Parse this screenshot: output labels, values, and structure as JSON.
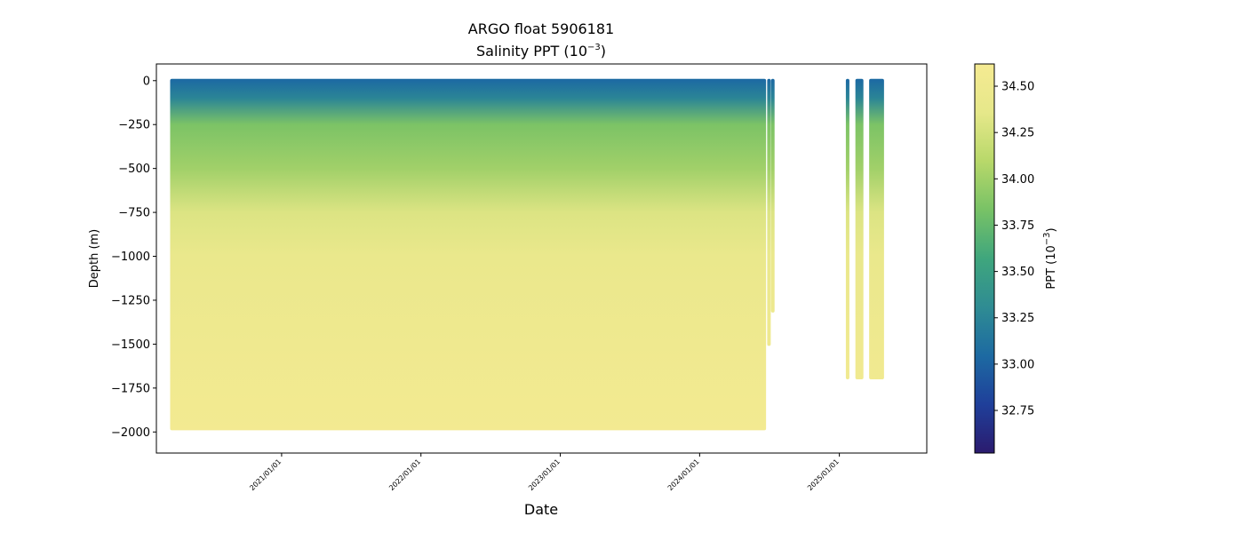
{
  "chart_data": {
    "type": "scatter",
    "title": "ARGO float 5906181",
    "subtitle_prefix": "Salinity PPT (10",
    "subtitle_exp": "−3",
    "subtitle_suffix": ")",
    "xlabel": "Date",
    "ylabel": "Depth (m)",
    "colorbar_label_prefix": "PPT (10",
    "colorbar_label_exp": "−3",
    "colorbar_label_suffix": ")",
    "colormap": "YlGnBu_r",
    "colormap_stops": [
      "#2b1b6e",
      "#1f3f9a",
      "#1d6aa2",
      "#2f8c93",
      "#3fa67d",
      "#78c266",
      "#b8d86a",
      "#e6e88a",
      "#f5ea92"
    ],
    "clim": [
      32.52,
      34.62
    ],
    "ylim": [
      -2120,
      95
    ],
    "xlim": [
      "2020-02-08",
      "2025-08-18"
    ],
    "grid": false,
    "y_ticks": [
      {
        "value": 0,
        "label": "0"
      },
      {
        "value": -250,
        "label": "−250"
      },
      {
        "value": -500,
        "label": "−500"
      },
      {
        "value": -750,
        "label": "−750"
      },
      {
        "value": -1000,
        "label": "−1000"
      },
      {
        "value": -1250,
        "label": "−1250"
      },
      {
        "value": -1500,
        "label": "−1500"
      },
      {
        "value": -1750,
        "label": "−1750"
      },
      {
        "value": -2000,
        "label": "−2000"
      }
    ],
    "x_ticks": [
      {
        "value": "2021-01-01",
        "label": "2021/01/01"
      },
      {
        "value": "2022-01-01",
        "label": "2022/01/01"
      },
      {
        "value": "2023-01-01",
        "label": "2023/01/01"
      },
      {
        "value": "2024-01-01",
        "label": "2024/01/01"
      },
      {
        "value": "2025-01-01",
        "label": "2025/01/01"
      }
    ],
    "colorbar_ticks": [
      {
        "value": 34.5,
        "label": "34.50"
      },
      {
        "value": 34.25,
        "label": "34.25"
      },
      {
        "value": 34.0,
        "label": "34.00"
      },
      {
        "value": 33.75,
        "label": "33.75"
      },
      {
        "value": 33.5,
        "label": "33.50"
      },
      {
        "value": 33.25,
        "label": "33.25"
      },
      {
        "value": 33.0,
        "label": "33.00"
      },
      {
        "value": 32.75,
        "label": "32.75"
      }
    ],
    "series": [
      {
        "profile_segments": [
          {
            "start": "2020-03-15",
            "end": "2024-06-23",
            "max_depth": -1980
          },
          {
            "start": "2024-06-26",
            "end": "2024-06-30",
            "max_depth": -1500
          },
          {
            "start": "2024-07-06",
            "end": "2024-07-10",
            "max_depth": -1310
          },
          {
            "start": "2025-01-18",
            "end": "2025-01-27",
            "max_depth": -1690
          },
          {
            "start": "2025-02-12",
            "end": "2025-03-05",
            "max_depth": -1690
          },
          {
            "start": "2025-03-20",
            "end": "2025-04-28",
            "max_depth": -1690
          }
        ],
        "salinity_profile": [
          {
            "depth": 0,
            "salinity": 33.05
          },
          {
            "depth": -100,
            "salinity": 33.25
          },
          {
            "depth": -250,
            "salinity": 33.85
          },
          {
            "depth": -500,
            "salinity": 34.0
          },
          {
            "depth": -750,
            "salinity": 34.3
          },
          {
            "depth": -1000,
            "salinity": 34.42
          },
          {
            "depth": -1500,
            "salinity": 34.52
          },
          {
            "depth": -2000,
            "salinity": 34.58
          }
        ]
      }
    ]
  }
}
